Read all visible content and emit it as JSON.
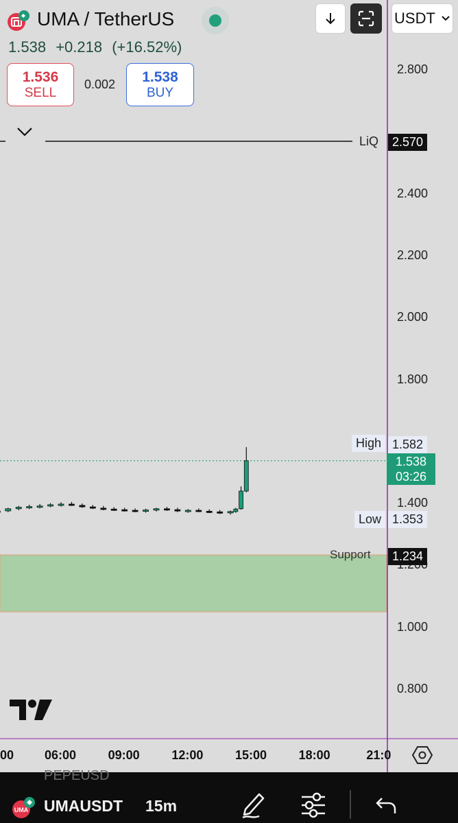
{
  "header": {
    "symbol_title": "UMA / TetherUS",
    "last_price": "1.538",
    "change": "+0.218",
    "change_pct": "(+16.52%)",
    "currency_selector": "USDT",
    "live_status_color": "#22a07c"
  },
  "trade": {
    "sell_price": "1.536",
    "sell_label": "SELL",
    "spread": "0.002",
    "buy_price": "1.538",
    "buy_label": "BUY",
    "sell_color": "#d23a48",
    "buy_color": "#2f62d6"
  },
  "chart_data": {
    "type": "candlestick",
    "symbol": "UMA/USDT",
    "interval": "15m",
    "y_ticks": [
      "2.800",
      "2.400",
      "2.200",
      "2.000",
      "1.800",
      "1.400",
      "1.200",
      "1.000",
      "0.800"
    ],
    "x_ticks": [
      "00",
      "06:00",
      "09:00",
      "12:00",
      "15:00",
      "18:00",
      "21:0"
    ],
    "ylim": [
      0.7,
      2.9
    ],
    "series_color": "#1f9b78",
    "candles": [
      {
        "t": 0.0,
        "o": 1.378,
        "h": 1.386,
        "l": 1.372,
        "c": 1.381
      },
      {
        "t": 0.5,
        "o": 1.381,
        "h": 1.388,
        "l": 1.375,
        "c": 1.378
      },
      {
        "t": 1.0,
        "o": 1.378,
        "h": 1.384,
        "l": 1.37,
        "c": 1.376
      },
      {
        "t": 1.5,
        "o": 1.376,
        "h": 1.383,
        "l": 1.368,
        "c": 1.372
      },
      {
        "t": 2.0,
        "o": 1.372,
        "h": 1.38,
        "l": 1.366,
        "c": 1.374
      },
      {
        "t": 2.5,
        "o": 1.374,
        "h": 1.382,
        "l": 1.368,
        "c": 1.371
      },
      {
        "t": 3.0,
        "o": 1.371,
        "h": 1.38,
        "l": 1.367,
        "c": 1.376
      },
      {
        "t": 3.5,
        "o": 1.376,
        "h": 1.386,
        "l": 1.372,
        "c": 1.383
      },
      {
        "t": 4.0,
        "o": 1.383,
        "h": 1.392,
        "l": 1.378,
        "c": 1.388
      },
      {
        "t": 4.5,
        "o": 1.388,
        "h": 1.396,
        "l": 1.382,
        "c": 1.39
      },
      {
        "t": 5.0,
        "o": 1.39,
        "h": 1.398,
        "l": 1.384,
        "c": 1.392
      },
      {
        "t": 5.5,
        "o": 1.392,
        "h": 1.401,
        "l": 1.388,
        "c": 1.396
      },
      {
        "t": 6.0,
        "o": 1.396,
        "h": 1.404,
        "l": 1.39,
        "c": 1.398
      },
      {
        "t": 6.5,
        "o": 1.398,
        "h": 1.405,
        "l": 1.392,
        "c": 1.394
      },
      {
        "t": 7.0,
        "o": 1.394,
        "h": 1.4,
        "l": 1.386,
        "c": 1.389
      },
      {
        "t": 7.5,
        "o": 1.389,
        "h": 1.395,
        "l": 1.382,
        "c": 1.385
      },
      {
        "t": 8.0,
        "o": 1.385,
        "h": 1.392,
        "l": 1.378,
        "c": 1.382
      },
      {
        "t": 8.5,
        "o": 1.382,
        "h": 1.388,
        "l": 1.376,
        "c": 1.38
      },
      {
        "t": 9.0,
        "o": 1.38,
        "h": 1.386,
        "l": 1.374,
        "c": 1.378
      },
      {
        "t": 9.5,
        "o": 1.378,
        "h": 1.384,
        "l": 1.372,
        "c": 1.376
      },
      {
        "t": 10.0,
        "o": 1.376,
        "h": 1.383,
        "l": 1.37,
        "c": 1.379
      },
      {
        "t": 10.5,
        "o": 1.379,
        "h": 1.386,
        "l": 1.374,
        "c": 1.383
      },
      {
        "t": 11.0,
        "o": 1.383,
        "h": 1.389,
        "l": 1.376,
        "c": 1.38
      },
      {
        "t": 11.5,
        "o": 1.38,
        "h": 1.386,
        "l": 1.372,
        "c": 1.376
      },
      {
        "t": 12.0,
        "o": 1.376,
        "h": 1.382,
        "l": 1.37,
        "c": 1.378
      },
      {
        "t": 12.5,
        "o": 1.378,
        "h": 1.384,
        "l": 1.372,
        "c": 1.375
      },
      {
        "t": 13.0,
        "o": 1.375,
        "h": 1.381,
        "l": 1.369,
        "c": 1.373
      },
      {
        "t": 13.5,
        "o": 1.373,
        "h": 1.379,
        "l": 1.366,
        "c": 1.371
      },
      {
        "t": 14.0,
        "o": 1.371,
        "h": 1.377,
        "l": 1.364,
        "c": 1.374
      },
      {
        "t": 14.25,
        "o": 1.374,
        "h": 1.386,
        "l": 1.37,
        "c": 1.382
      },
      {
        "t": 14.5,
        "o": 1.383,
        "h": 1.455,
        "l": 1.38,
        "c": 1.44
      },
      {
        "t": 14.75,
        "o": 1.44,
        "h": 1.582,
        "l": 1.436,
        "c": 1.538
      }
    ],
    "high": "1.582",
    "low": "1.353",
    "current": "1.538",
    "countdown": "03:26",
    "liq_label": "LiQ",
    "liq_price": "2.570",
    "support_label": "Support",
    "support_price": "1.234",
    "high_label": "High",
    "low_label": "Low",
    "support_zone": [
      1.05,
      1.234
    ],
    "support_zone_color": "#a8cfa6",
    "crosshair_color": "#8e24aa"
  },
  "bottom": {
    "ghost_symbol": "PEPEUSD",
    "symbol": "UMAUSDT",
    "interval": "15m",
    "icons": [
      "pencil-icon",
      "sliders-icon",
      "undo-icon"
    ]
  }
}
